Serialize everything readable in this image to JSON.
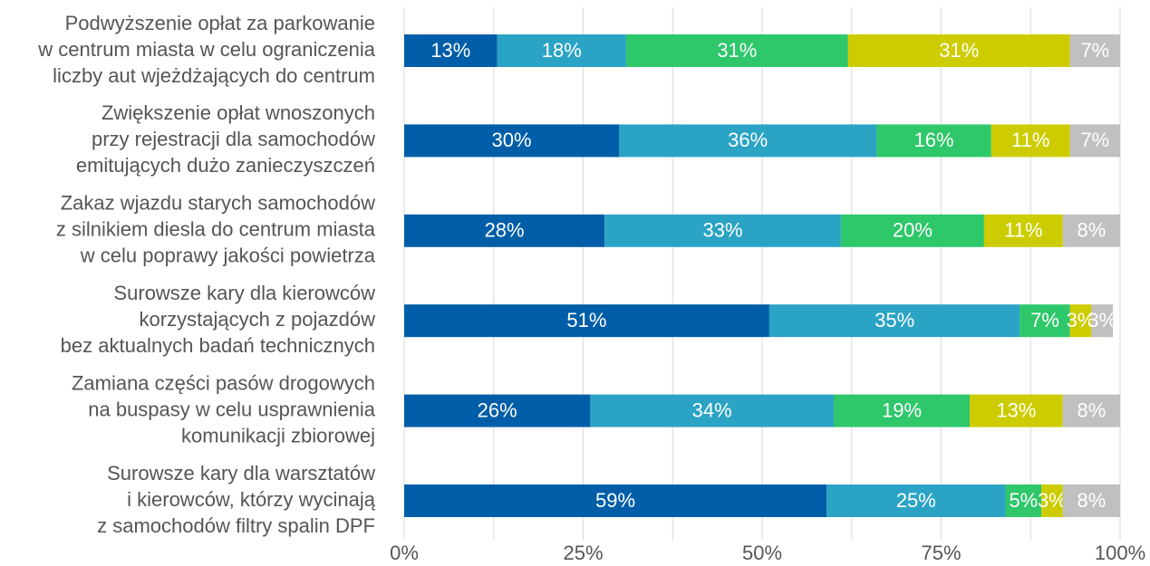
{
  "chart_data": {
    "type": "stacked-barh",
    "categories": [
      [
        "Podwyższenie opłat za parkowanie",
        "w centrum miasta w celu ograniczenia",
        "liczby aut wjeżdżających do centrum"
      ],
      [
        "Zwiększenie opłat wnoszonych",
        "przy rejestracji dla samochodów",
        "emitujących dużo zanieczyszczeń"
      ],
      [
        "Zakaz wjazdu starych samochodów",
        "z silnikiem diesla do centrum miasta",
        "w celu poprawy jakości powietrza"
      ],
      [
        "Surowsze kary dla kierowców",
        "korzystających z pojazdów",
        "bez aktualnych badań technicznych"
      ],
      [
        "Zamiana części pasów drogowych",
        "na buspasy w celu usprawnienia",
        "komunikacji zbiorowej"
      ],
      [
        "Surowsze kary dla warsztatów",
        "i kierowców, którzy wycinają",
        "z samochodów filtry spalin DPF"
      ]
    ],
    "series": [
      {
        "color": "#005ea8",
        "values": [
          13,
          30,
          28,
          51,
          26,
          59
        ],
        "value_labels": [
          "13%",
          "30%",
          "28%",
          "51%",
          "26%",
          "59%"
        ]
      },
      {
        "color": "#2ba3c4",
        "values": [
          18,
          36,
          33,
          35,
          34,
          25
        ],
        "value_labels": [
          "18%",
          "36%",
          "33%",
          "35%",
          "34%",
          "25%"
        ]
      },
      {
        "color": "#2ec76a",
        "values": [
          31,
          16,
          20,
          7,
          19,
          5
        ],
        "value_labels": [
          "31%",
          "16%",
          "20%",
          "7%",
          "19%",
          "5%"
        ]
      },
      {
        "color": "#cccc00",
        "values": [
          31,
          11,
          11,
          3,
          13,
          3
        ],
        "value_labels": [
          "31%",
          "11%",
          "11%",
          "3%",
          "13%",
          "3%"
        ]
      },
      {
        "color": "#c0c0c0",
        "values": [
          7,
          7,
          8,
          3,
          8,
          8
        ],
        "value_labels": [
          "7%",
          "7%",
          "8%",
          "3%",
          "8%",
          "8%"
        ]
      }
    ],
    "xlim": [
      0,
      100
    ],
    "xticks": [
      {
        "value": 0,
        "label": "0%"
      },
      {
        "value": 25,
        "label": "25%"
      },
      {
        "value": 50,
        "label": "50%"
      },
      {
        "value": 75,
        "label": "75%"
      },
      {
        "value": 100,
        "label": "100%"
      }
    ],
    "xgrid": [
      0,
      12.5,
      25,
      37.5,
      50,
      62.5,
      75,
      87.5,
      100
    ],
    "grid": true
  }
}
